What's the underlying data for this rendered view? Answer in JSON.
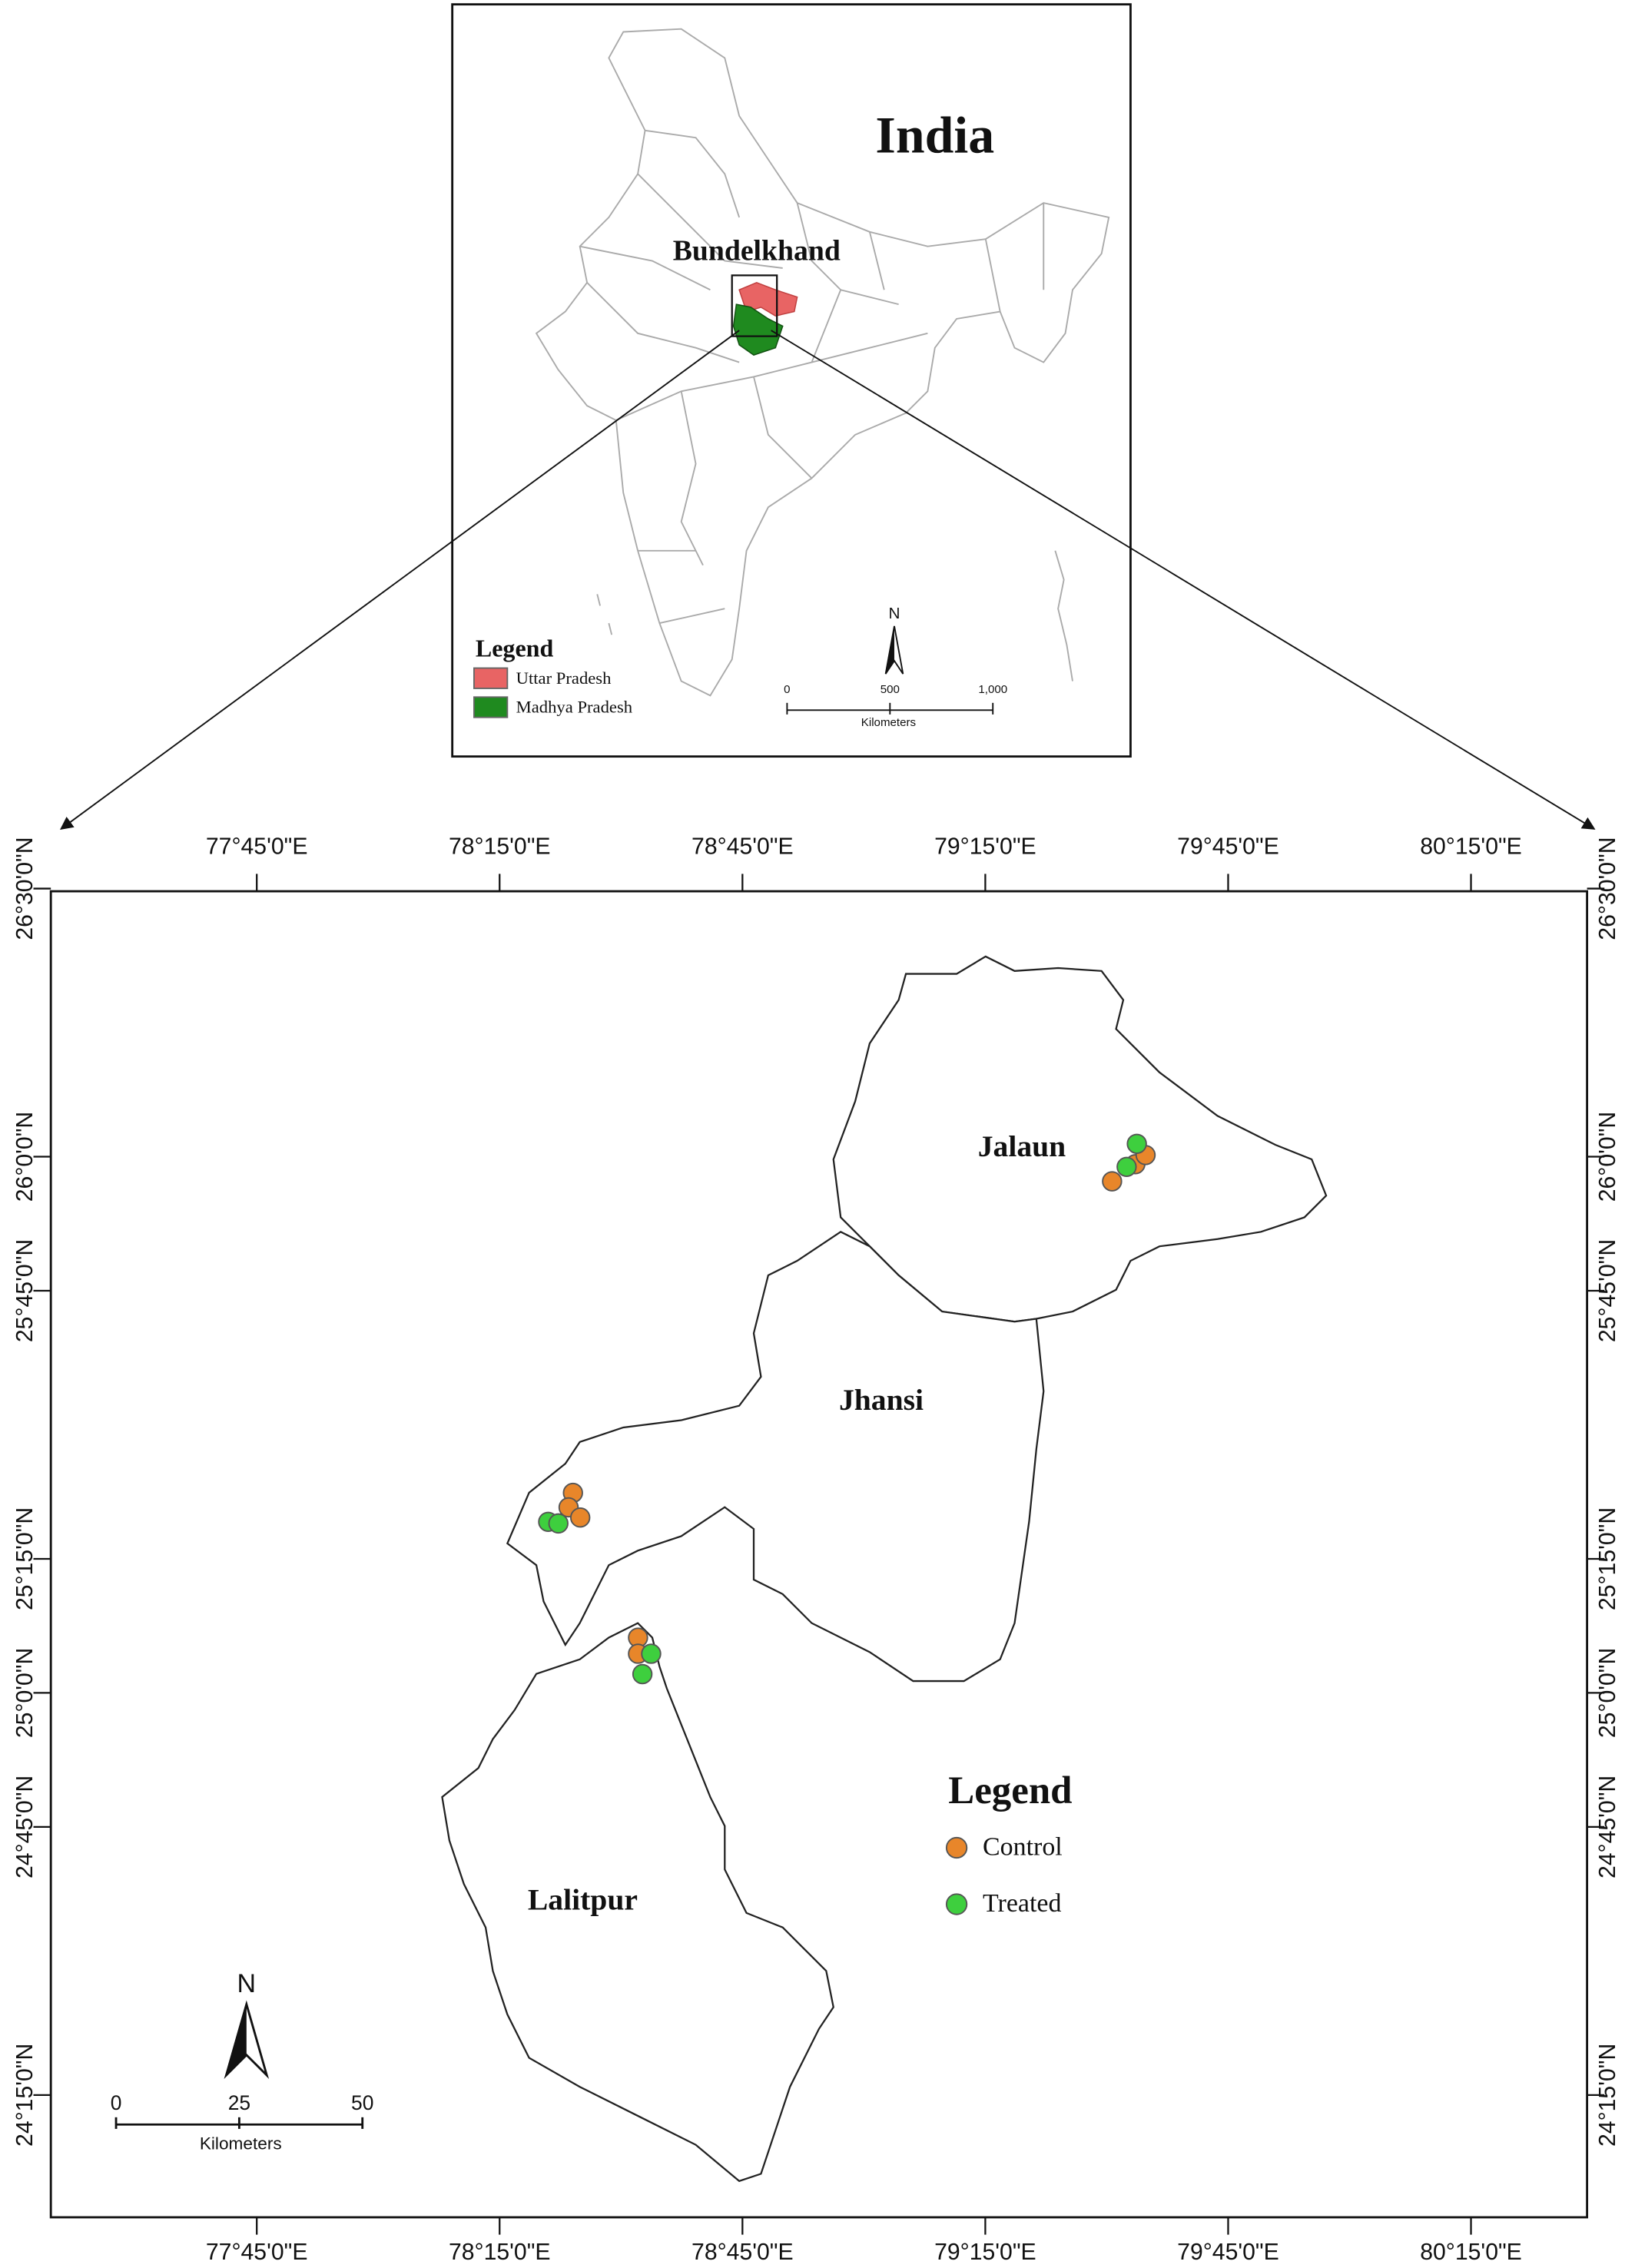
{
  "inset": {
    "title": "India",
    "region_label": "Bundelkhand",
    "legend": {
      "title": "Legend",
      "items": [
        {
          "label": "Uttar Pradesh",
          "color": "#e86464"
        },
        {
          "label": "Madhya Pradesh",
          "color": "#1f8a1f"
        }
      ]
    },
    "scale": {
      "ticks": [
        0,
        {
          "value": 500,
          "label": "500"
        },
        {
          "value": 1000,
          "label": "1,000"
        }
      ],
      "unit": "Kilometers"
    },
    "north": "N"
  },
  "chart_data": {
    "type": "map",
    "xlim": [
      77.326,
      80.489
    ],
    "ylim": [
      24.022,
      26.495
    ],
    "xticks": [
      {
        "value": 77.75,
        "label": "77°45'0\"E"
      },
      {
        "value": 78.25,
        "label": "78°15'0\"E"
      },
      {
        "value": 78.75,
        "label": "78°45'0\"E"
      },
      {
        "value": 79.25,
        "label": "79°15'0\"E"
      },
      {
        "value": 79.75,
        "label": "79°45'0\"E"
      },
      {
        "value": 80.25,
        "label": "80°15'0\"E"
      }
    ],
    "yticks": [
      {
        "value": 26.5,
        "label": "26°30'0\"N"
      },
      {
        "value": 26.0,
        "label": "26°0'0\"N"
      },
      {
        "value": 25.75,
        "label": "25°45'0\"N"
      },
      {
        "value": 25.25,
        "label": "25°15'0\"N"
      },
      {
        "value": 25.0,
        "label": "25°0'0\"N"
      },
      {
        "value": 24.75,
        "label": "24°45'0\"N"
      },
      {
        "value": 24.25,
        "label": "24°15'0\"N"
      }
    ],
    "districts": [
      "Jalaun",
      "Jhansi",
      "Lalitpur"
    ],
    "legend_title": "Legend",
    "series": [
      {
        "name": "Control",
        "color": "#e8862a",
        "points": [
          {
            "lon": 79.511,
            "lat": 25.954
          },
          {
            "lon": 79.559,
            "lat": 25.986
          },
          {
            "lon": 79.58,
            "lat": 26.003
          },
          {
            "lon": 78.401,
            "lat": 25.373
          },
          {
            "lon": 78.392,
            "lat": 25.346
          },
          {
            "lon": 78.416,
            "lat": 25.327
          },
          {
            "lon": 78.535,
            "lat": 25.103
          },
          {
            "lon": 78.535,
            "lat": 25.073
          }
        ]
      },
      {
        "name": "Treated",
        "color": "#3ecf3e",
        "points": [
          {
            "lon": 79.562,
            "lat": 26.024
          },
          {
            "lon": 79.541,
            "lat": 25.981
          },
          {
            "lon": 78.35,
            "lat": 25.319
          },
          {
            "lon": 78.371,
            "lat": 25.316
          },
          {
            "lon": 78.562,
            "lat": 25.073
          },
          {
            "lon": 78.544,
            "lat": 25.035
          }
        ]
      }
    ],
    "scale": {
      "ticks": [
        0,
        25,
        50
      ],
      "unit": "Kilometers"
    },
    "north": "N"
  }
}
